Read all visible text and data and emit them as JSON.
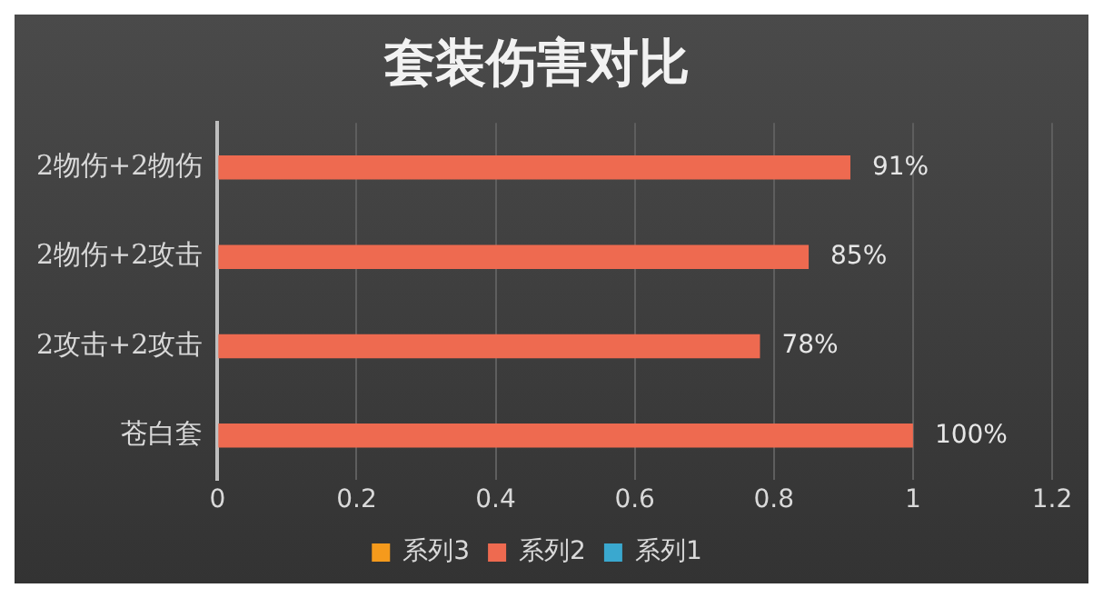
{
  "chart_data": {
    "type": "bar",
    "orientation": "horizontal",
    "title": "套装伤害对比",
    "categories": [
      "2物伤+2物伤",
      "2物伤+2攻击",
      "2攻击+2攻击",
      "苍白套"
    ],
    "series": [
      {
        "name": "系列3",
        "color": "#f59a1c",
        "values": [
          null,
          null,
          null,
          null
        ]
      },
      {
        "name": "系列2",
        "color": "#ee6a50",
        "values": [
          0.91,
          0.85,
          0.78,
          1
        ],
        "value_labels": [
          "91%",
          "85%",
          "78%",
          "100%"
        ]
      },
      {
        "name": "系列1",
        "color": "#3aa8cf",
        "values": [
          null,
          null,
          null,
          null
        ]
      }
    ],
    "xlim": [
      0,
      1.2
    ],
    "xticks": [
      0,
      0.2,
      0.4,
      0.6,
      0.8,
      1,
      1.2
    ],
    "grid": "x",
    "legend": "bottom"
  }
}
